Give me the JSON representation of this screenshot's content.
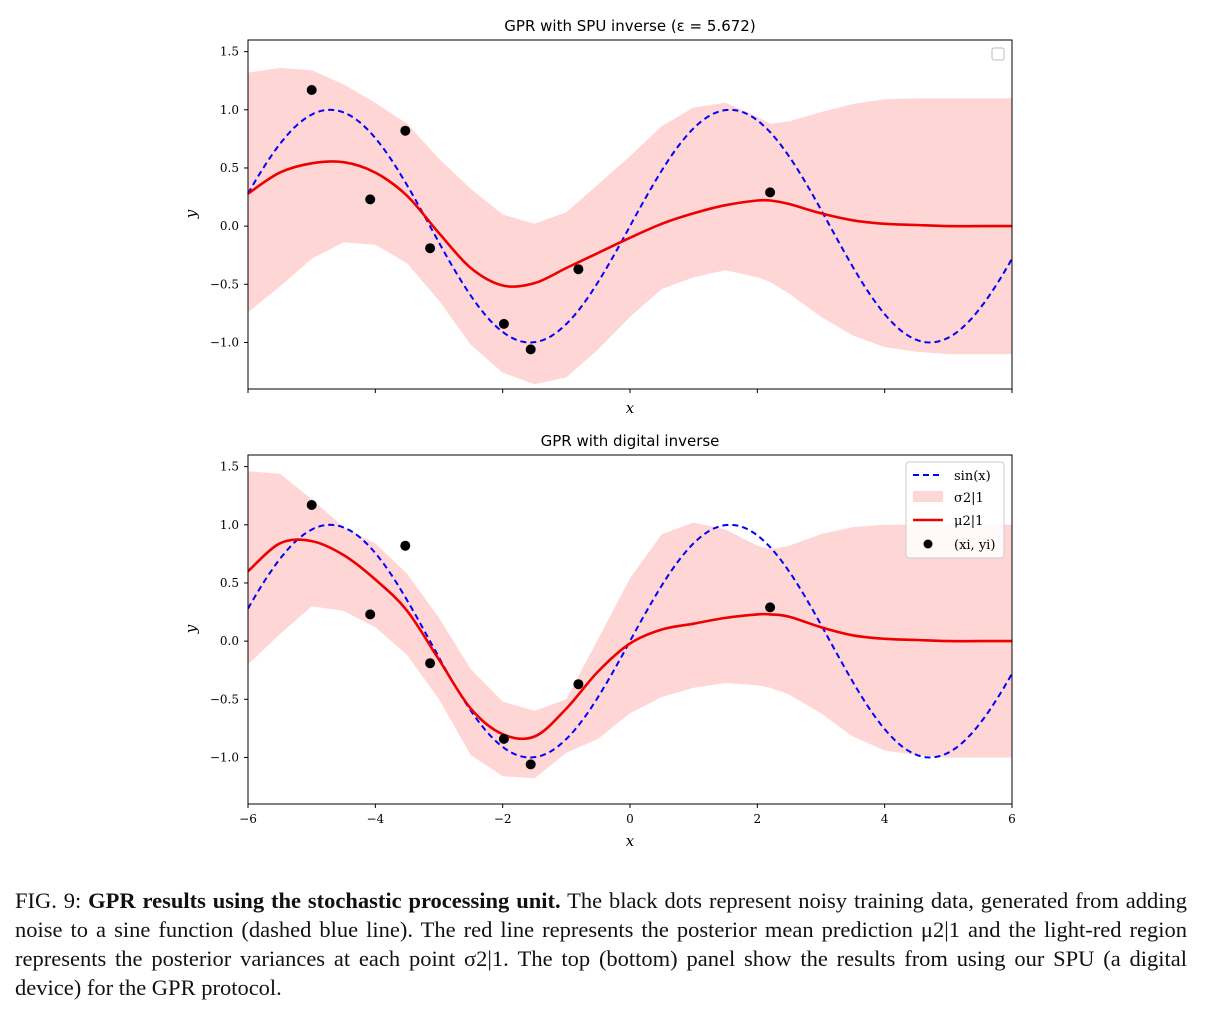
{
  "chart_data": [
    {
      "type": "line",
      "title": "GPR with SPU inverse (ε = 5.672)",
      "xlabel": "x",
      "ylabel": "y",
      "xlim": [
        -6,
        6
      ],
      "ylim": [
        -1.4,
        1.6
      ],
      "xticks": [
        -6,
        -4,
        -2,
        0,
        2,
        4,
        6
      ],
      "xtick_labels_visible": false,
      "yticks": [
        -1.0,
        -0.5,
        0.0,
        0.5,
        1.0,
        1.5
      ],
      "ytick_labels": [
        "−1.0",
        "−0.5",
        "0.0",
        "0.5",
        "1.0",
        "1.5"
      ],
      "grid": false,
      "legend": "top-right (empty)",
      "series": [
        {
          "kind": "dashed-line",
          "function": "sin(x)",
          "color": "#0000ff",
          "samples": 300
        },
        {
          "kind": "band",
          "color": "#ffd6d6",
          "x": [
            -6.0,
            -5.5,
            -5.0,
            -4.5,
            -4.0,
            -3.5,
            -3.0,
            -2.5,
            -2.0,
            -1.5,
            -1.0,
            -0.5,
            0.0,
            0.5,
            1.0,
            1.5,
            2.0,
            2.2,
            2.5,
            3.0,
            3.5,
            4.0,
            4.5,
            5.0,
            5.5,
            6.0
          ],
          "upper": [
            1.32,
            1.36,
            1.34,
            1.22,
            1.06,
            0.88,
            0.58,
            0.32,
            0.1,
            0.02,
            0.12,
            0.36,
            0.6,
            0.86,
            1.02,
            1.06,
            0.94,
            0.88,
            0.9,
            0.98,
            1.05,
            1.09,
            1.1,
            1.1,
            1.1,
            1.1
          ],
          "lower": [
            -0.74,
            -0.52,
            -0.28,
            -0.14,
            -0.16,
            -0.32,
            -0.64,
            -1.02,
            -1.26,
            -1.36,
            -1.3,
            -1.06,
            -0.78,
            -0.54,
            -0.44,
            -0.38,
            -0.44,
            -0.48,
            -0.58,
            -0.78,
            -0.94,
            -1.04,
            -1.08,
            -1.1,
            -1.1,
            -1.1
          ]
        },
        {
          "kind": "mean-line",
          "color": "#ee0000",
          "x": [
            -6.0,
            -5.5,
            -5.0,
            -4.5,
            -4.0,
            -3.5,
            -3.0,
            -2.5,
            -2.0,
            -1.5,
            -1.0,
            -0.5,
            0.0,
            0.5,
            1.0,
            1.5,
            2.0,
            2.2,
            2.5,
            3.0,
            3.5,
            4.0,
            4.5,
            5.0,
            5.5,
            6.0
          ],
          "y": [
            0.28,
            0.46,
            0.54,
            0.55,
            0.46,
            0.26,
            -0.06,
            -0.36,
            -0.51,
            -0.49,
            -0.36,
            -0.23,
            -0.1,
            0.02,
            0.11,
            0.18,
            0.22,
            0.22,
            0.19,
            0.11,
            0.05,
            0.02,
            0.01,
            0.0,
            0.0,
            0.0
          ]
        },
        {
          "kind": "points",
          "color": "#000000",
          "x": [
            -5.0,
            -4.08,
            -3.53,
            -3.14,
            -1.98,
            -1.56,
            -0.81,
            2.2
          ],
          "y": [
            1.17,
            0.23,
            0.82,
            -0.19,
            -0.84,
            -1.06,
            -0.37,
            0.29
          ]
        }
      ]
    },
    {
      "type": "line",
      "title": "GPR with digital inverse",
      "xlabel": "x",
      "ylabel": "y",
      "xlim": [
        -6,
        6
      ],
      "ylim": [
        -1.4,
        1.6
      ],
      "xticks": [
        -6,
        -4,
        -2,
        0,
        2,
        4,
        6
      ],
      "xtick_labels": [
        "−6",
        "−4",
        "−2",
        "0",
        "2",
        "4",
        "6"
      ],
      "xtick_labels_visible": true,
      "yticks": [
        -1.0,
        -0.5,
        0.0,
        0.5,
        1.0,
        1.5
      ],
      "ytick_labels": [
        "−1.0",
        "−0.5",
        "0.0",
        "0.5",
        "1.0",
        "1.5"
      ],
      "grid": false,
      "legend": "top-right",
      "legend_entries": [
        "sin(x)",
        "σ2|1",
        "μ2|1",
        "(xi, yi)"
      ],
      "series": [
        {
          "kind": "dashed-line",
          "function": "sin(x)",
          "color": "#0000ff",
          "samples": 300
        },
        {
          "kind": "band",
          "color": "#ffd6d6",
          "x": [
            -6.0,
            -5.5,
            -5.0,
            -4.5,
            -4.0,
            -3.5,
            -3.0,
            -2.5,
            -2.0,
            -1.5,
            -1.0,
            -0.5,
            0.0,
            0.5,
            1.0,
            1.5,
            2.0,
            2.2,
            2.5,
            3.0,
            3.5,
            4.0,
            4.5,
            5.0,
            5.5,
            6.0
          ],
          "upper": [
            1.46,
            1.44,
            1.22,
            0.98,
            0.84,
            0.58,
            0.2,
            -0.24,
            -0.52,
            -0.6,
            -0.5,
            0.02,
            0.54,
            0.92,
            1.02,
            0.96,
            0.82,
            0.79,
            0.82,
            0.92,
            0.98,
            1.0,
            1.0,
            1.0,
            1.0,
            1.0
          ],
          "lower": [
            -0.2,
            0.06,
            0.3,
            0.26,
            0.12,
            -0.12,
            -0.5,
            -0.98,
            -1.16,
            -1.18,
            -0.96,
            -0.84,
            -0.62,
            -0.48,
            -0.4,
            -0.36,
            -0.38,
            -0.4,
            -0.46,
            -0.62,
            -0.82,
            -0.94,
            -0.98,
            -1.0,
            -1.0,
            -1.0
          ]
        },
        {
          "kind": "mean-line",
          "color": "#ee0000",
          "x": [
            -6.0,
            -5.5,
            -5.0,
            -4.5,
            -4.0,
            -3.5,
            -3.0,
            -2.5,
            -2.0,
            -1.5,
            -1.0,
            -0.5,
            0.0,
            0.5,
            1.0,
            1.5,
            2.0,
            2.2,
            2.5,
            3.0,
            3.5,
            4.0,
            4.5,
            5.0,
            5.5,
            6.0
          ],
          "y": [
            0.6,
            0.84,
            0.86,
            0.74,
            0.53,
            0.26,
            -0.16,
            -0.58,
            -0.8,
            -0.82,
            -0.58,
            -0.26,
            -0.02,
            0.1,
            0.15,
            0.2,
            0.23,
            0.23,
            0.21,
            0.12,
            0.05,
            0.02,
            0.01,
            0.0,
            0.0,
            0.0
          ]
        },
        {
          "kind": "points",
          "color": "#000000",
          "x": [
            -5.0,
            -4.08,
            -3.53,
            -3.14,
            -1.98,
            -1.56,
            -0.81,
            2.2
          ],
          "y": [
            1.17,
            0.23,
            0.82,
            -0.19,
            -0.84,
            -1.06,
            -0.37,
            0.29
          ]
        }
      ]
    }
  ],
  "caption": {
    "label": "FIG. 9:",
    "bold": "GPR results using the stochastic processing unit.",
    "text": "The black dots represent noisy training data, generated from adding noise to a sine function (dashed blue line). The red line represents the posterior mean prediction μ2|1 and the light-red region represents the posterior variances at each point σ2|1. The top (bottom) panel show the results from using our SPU (a digital device) for the GPR protocol."
  }
}
